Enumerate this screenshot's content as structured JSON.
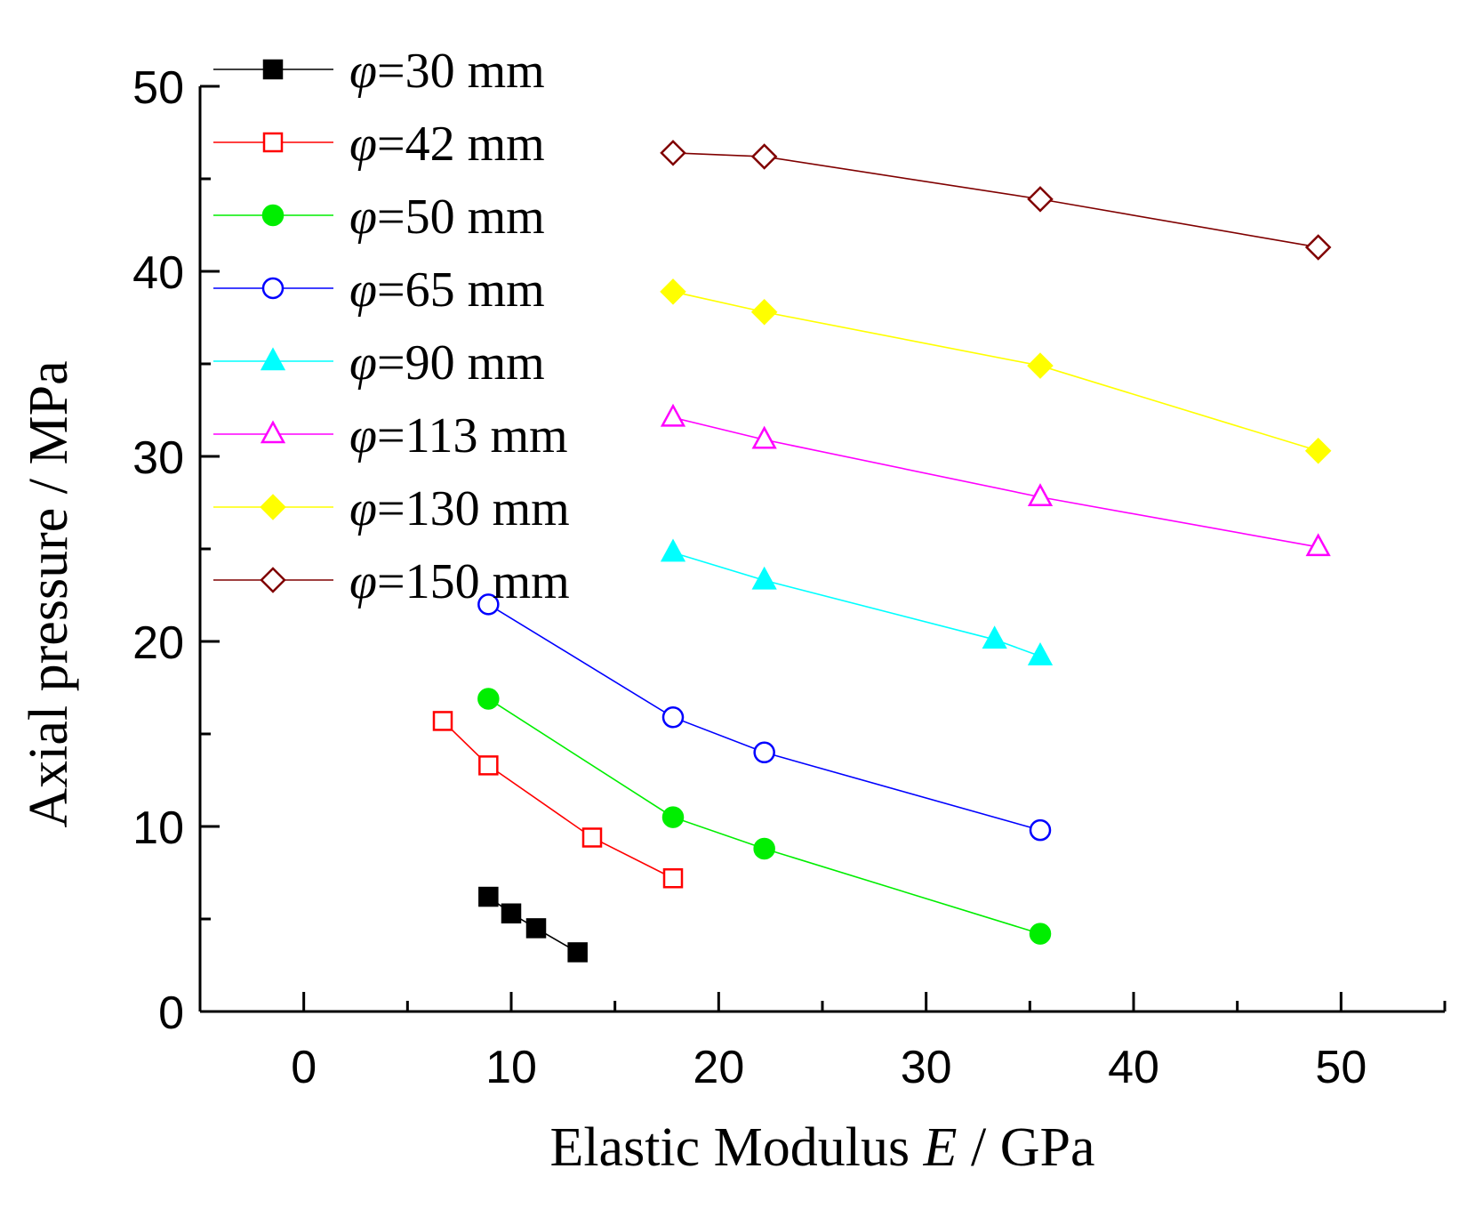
{
  "chart_data": {
    "type": "line",
    "title": "",
    "xlabel": "Elastic Modulus E / GPa",
    "xlabel_parts": {
      "prefix": "Elastic Modulus ",
      "variable": "E",
      "suffix": " / GPa"
    },
    "ylabel": "Axial pressure / MPa",
    "xlim": [
      -5,
      55
    ],
    "ylim": [
      0,
      50
    ],
    "x_ticks": [
      0,
      10,
      20,
      30,
      40,
      50
    ],
    "x_tick_labels": [
      "0",
      "10",
      "20",
      "30",
      "40",
      "50"
    ],
    "y_ticks": [
      0,
      10,
      20,
      30,
      40,
      50
    ],
    "y_tick_labels": [
      "0",
      "10",
      "20",
      "30",
      "40",
      "50"
    ],
    "grid": false,
    "legend_position": "top-left",
    "series": [
      {
        "name": "φ=30 mm",
        "symbol": "φ",
        "label": "=30 mm",
        "color": "#000000",
        "marker": "square-filled",
        "x": [
          8.9,
          10.0,
          11.2,
          13.2
        ],
        "y": [
          6.2,
          5.3,
          4.5,
          3.2
        ]
      },
      {
        "name": "φ=42 mm",
        "symbol": "φ",
        "label": "=42 mm",
        "color": "#ff0000",
        "marker": "square-open",
        "x": [
          6.7,
          8.9,
          13.9,
          17.8
        ],
        "y": [
          15.7,
          13.3,
          9.4,
          7.2
        ]
      },
      {
        "name": "φ=50 mm",
        "symbol": "φ",
        "label": "=50 mm",
        "color": "#00ee00",
        "marker": "circle-filled",
        "x": [
          8.9,
          17.8,
          22.2,
          35.5
        ],
        "y": [
          16.9,
          10.5,
          8.8,
          4.2
        ]
      },
      {
        "name": "φ=65 mm",
        "symbol": "φ",
        "label": "=65 mm",
        "color": "#0000ff",
        "marker": "circle-open",
        "x": [
          8.9,
          17.8,
          22.2,
          35.5
        ],
        "y": [
          22.0,
          15.9,
          14.0,
          9.8
        ]
      },
      {
        "name": "φ=90 mm",
        "symbol": "φ",
        "label": "=90 mm",
        "color": "#00ffff",
        "marker": "triangle-filled",
        "x": [
          17.8,
          22.2,
          33.3,
          35.5
        ],
        "y": [
          24.8,
          23.3,
          20.1,
          19.2
        ]
      },
      {
        "name": "φ=113 mm",
        "symbol": "φ",
        "label": "=113 mm",
        "color": "#ff00ff",
        "marker": "triangle-open",
        "x": [
          17.8,
          22.2,
          35.5,
          48.9
        ],
        "y": [
          32.1,
          30.9,
          27.8,
          25.1
        ]
      },
      {
        "name": "φ=130 mm",
        "symbol": "φ",
        "label": "=130 mm",
        "color": "#ffff00",
        "marker": "diamond-filled",
        "x": [
          17.8,
          22.2,
          35.5,
          48.9
        ],
        "y": [
          38.9,
          37.8,
          34.9,
          30.3
        ]
      },
      {
        "name": "φ=150 mm",
        "symbol": "φ",
        "label": "=150 mm",
        "color": "#800000",
        "marker": "diamond-open",
        "x": [
          17.8,
          22.2,
          35.5,
          48.9
        ],
        "y": [
          46.4,
          46.2,
          43.9,
          41.3
        ]
      }
    ]
  }
}
